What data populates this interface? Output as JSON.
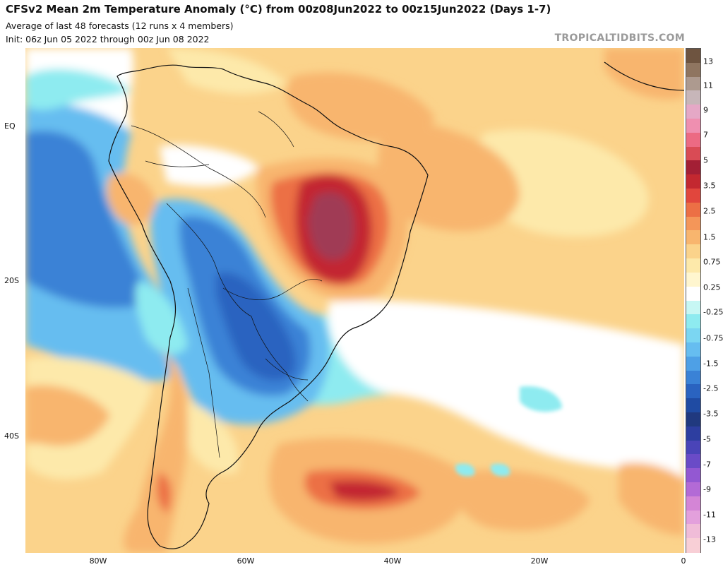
{
  "header": {
    "title": "CFSv2 Mean 2m Temperature Anomaly (°C) from 00z08Jun2022 to 00z15Jun2022 (Days 1-7)",
    "subtitle": "Average of last 48 forecasts (12 runs x 4 members)",
    "init": "Init: 06z Jun 05 2022 through 00z Jun 08 2022",
    "brand": "TROPICALTIDBITS.COM"
  },
  "axes": {
    "lat_labels": [
      "EQ",
      "20S",
      "40S"
    ],
    "lon_labels": [
      "80W",
      "60W",
      "40W",
      "20W",
      "0"
    ]
  },
  "colorbar": {
    "labels": [
      "13",
      "11",
      "9",
      "7",
      "5",
      "3.5",
      "2.5",
      "1.5",
      "0.75",
      "0.25",
      "-0.25",
      "-0.75",
      "-1.5",
      "-2.5",
      "-3.5",
      "-5",
      "-7",
      "-9",
      "-11",
      "-13"
    ],
    "colors": [
      "#6e5440",
      "#8f7560",
      "#ad9a8f",
      "#c7b6b9",
      "#e5a8c6",
      "#ef8fb0",
      "#ec6a83",
      "#d94b55",
      "#a31f35",
      "#c32830",
      "#e1463d",
      "#ec6f45",
      "#f49659",
      "#f8b56e",
      "#fbd38b",
      "#fde9aa",
      "#fff6cf",
      "#ffffff",
      "#c7f7f4",
      "#8eebf0",
      "#7bd6f2",
      "#66bdf0",
      "#4ea0e6",
      "#3a82d6",
      "#2a63c0",
      "#1f4ba3",
      "#20397f",
      "#2d3ea0",
      "#4a44b8",
      "#6a4bc7",
      "#9358d2",
      "#b36ad6",
      "#d485d6",
      "#e3a0dc",
      "#f0bcd8",
      "#f8cfd6"
    ]
  },
  "map": {
    "region": "South America and South Atlantic",
    "colors": {
      "warm_base": "#fbd38b",
      "warm_light": "#fde9aa",
      "orange": "#f8b56e",
      "orange_dark": "#ec6f45",
      "red": "#c32830",
      "maroon": "#a03a55",
      "cold_light": "#8eebf0",
      "cold_mid": "#66bdf0",
      "cold_blue": "#3a82d6",
      "cold_dark": "#2a63c0",
      "neutral": "#ffffff"
    }
  }
}
